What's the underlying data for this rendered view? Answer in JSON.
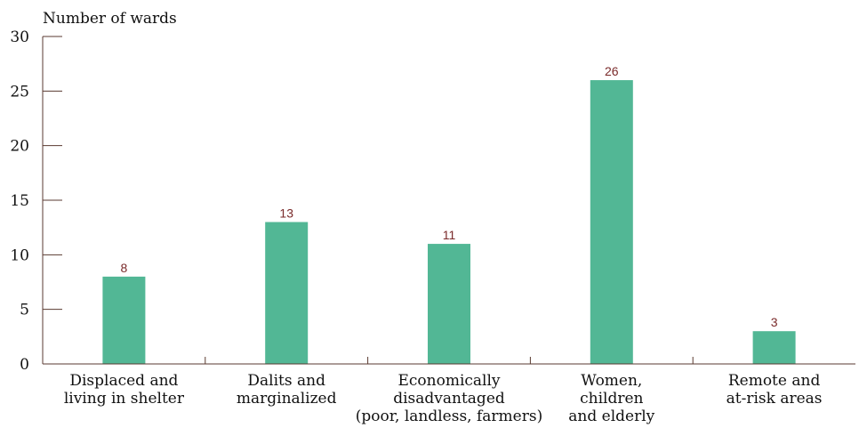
{
  "chart_data": {
    "type": "bar",
    "ylabel": "Number of wards",
    "ylim": [
      0,
      30
    ],
    "yticks": [
      0,
      5,
      10,
      15,
      20,
      25,
      30
    ],
    "categories": [
      [
        "Displaced and",
        "living in shelter"
      ],
      [
        "Dalits and",
        "marginalized"
      ],
      [
        "Economically",
        "disadvantaged",
        "(poor, landless, farmers)"
      ],
      [
        "Women,",
        "children",
        "and elderly"
      ],
      [
        "Remote and",
        "at-risk areas"
      ]
    ],
    "values": [
      8,
      13,
      11,
      26,
      3
    ],
    "data_labels": [
      "8",
      "13",
      "11",
      "26",
      "3"
    ],
    "bar_color": "#52b795",
    "data_label_color": "#7a2a2a",
    "grid": false,
    "legend": "none"
  }
}
